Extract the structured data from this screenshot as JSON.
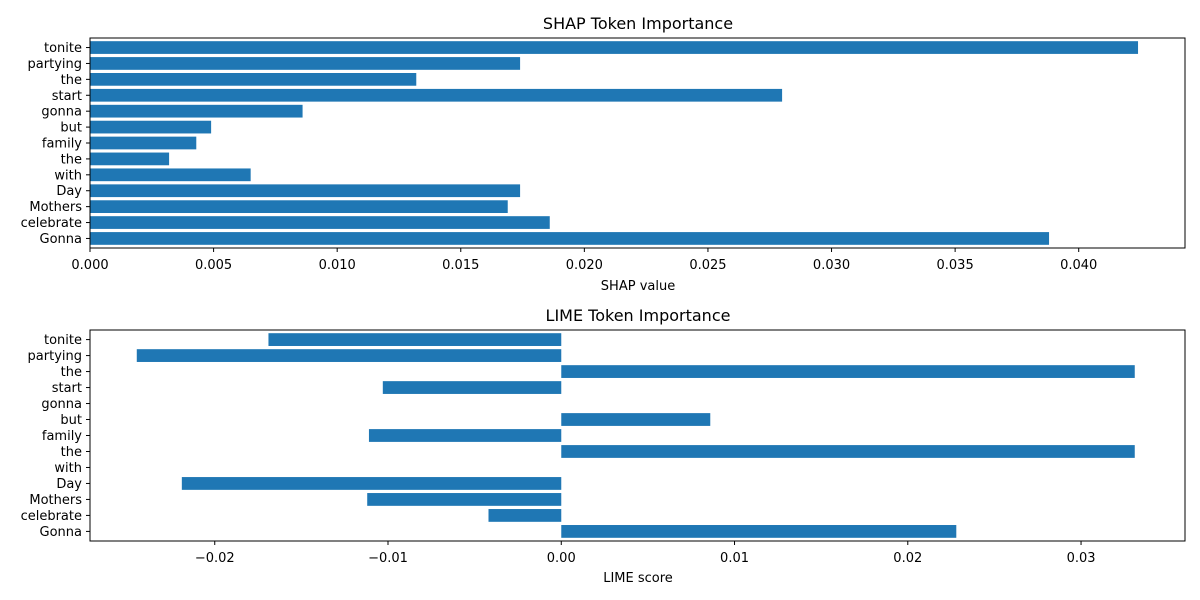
{
  "chart_data": [
    {
      "type": "bar",
      "orientation": "horizontal",
      "title": "SHAP Token Importance",
      "xlabel": "SHAP value",
      "ylabel": "",
      "xlim": [
        0.0,
        0.0443
      ],
      "xticks": [
        0.0,
        0.005,
        0.01,
        0.015,
        0.02,
        0.025,
        0.03,
        0.035,
        0.04
      ],
      "xtick_labels": [
        "0.000",
        "0.005",
        "0.010",
        "0.015",
        "0.020",
        "0.025",
        "0.030",
        "0.035",
        "0.040"
      ],
      "categories": [
        "tonite",
        "partying",
        "the",
        "start",
        "gonna",
        "but",
        "family",
        "the",
        "with",
        "Day",
        "Mothers",
        "celebrate",
        "Gonna"
      ],
      "values": [
        0.0424,
        0.0174,
        0.0132,
        0.028,
        0.0086,
        0.0049,
        0.0043,
        0.0032,
        0.0065,
        0.0174,
        0.0169,
        0.0186,
        0.0388
      ],
      "color": "#1f77b4",
      "grid": false
    },
    {
      "type": "bar",
      "orientation": "horizontal",
      "title": "LIME Token Importance",
      "xlabel": "LIME score",
      "ylabel": "",
      "xlim": [
        -0.0272,
        0.036
      ],
      "xticks": [
        -0.02,
        -0.01,
        0.0,
        0.01,
        0.02,
        0.03
      ],
      "xtick_labels": [
        "−0.02",
        "−0.01",
        "0.00",
        "0.01",
        "0.02",
        "0.03"
      ],
      "categories": [
        "tonite",
        "partying",
        "the",
        "start",
        "gonna",
        "but",
        "family",
        "the",
        "with",
        "Day",
        "Mothers",
        "celebrate",
        "Gonna"
      ],
      "values": [
        -0.0169,
        -0.0245,
        0.0331,
        -0.0103,
        0.0,
        0.0086,
        -0.0111,
        0.0331,
        0.0,
        -0.0219,
        -0.0112,
        -0.0042,
        0.0228
      ],
      "color": "#1f77b4",
      "grid": false
    }
  ]
}
